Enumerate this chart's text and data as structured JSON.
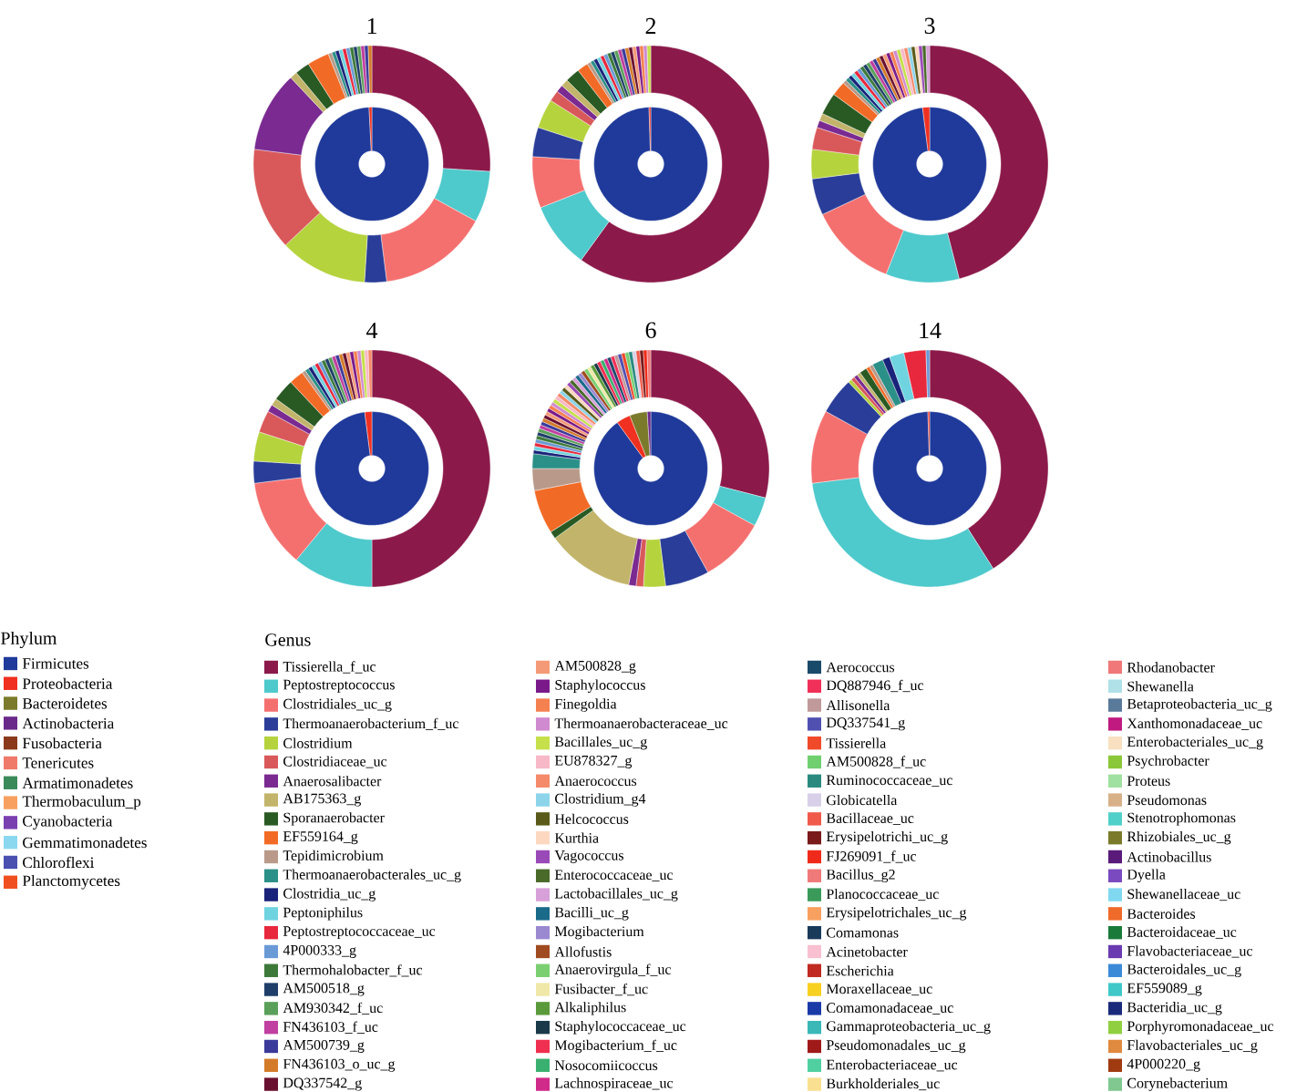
{
  "chart_data": [
    {
      "type": "donut",
      "title": "1",
      "legend": "bottom",
      "legend_title": "Genus",
      "categories": [
        "Tissierella_f_uc",
        "Peptostreptococcus",
        "Clostridiales_uc_g",
        "Thermoanaerobacterium_f_uc",
        "Clostridium",
        "Clostridiaceae_uc",
        "Anaerosalibacter",
        "AB175363_g",
        "Sporanaerobacter",
        "EF559164_g",
        "Tepidimicrobium",
        "Thermoanaerobacterales_uc_g",
        "Clostridia_uc_g",
        "Peptoniphilus",
        "Peptostreptococcaceae_uc",
        "4P000333_g",
        "Thermohalobacter_f_uc",
        "AM500518_g",
        "AM930342_f_uc",
        "FN436103_f_uc",
        "AM500739_g",
        "FN436103_o_uc_g",
        "DQ337542_g",
        "AM500828_g",
        "Staphylococcus",
        "Finegoldia",
        "Thermoanaerobacteraceae_uc",
        "Bacillales_uc_g",
        "EU878327_g",
        "Anaerococcus",
        "Clostridium_g4",
        "Helcococcus",
        "Kurthia",
        "Vagococcus",
        "Enterococcaceae_uc",
        "Lactobacillales_uc_g",
        "Bacilli_uc_g",
        "Mogibacterium",
        "Allofustis",
        "Anaerovirgula_f_uc",
        "Fusibacter_f_uc",
        "Alkaliphilus",
        "Staphylococcaceae_uc",
        "Mogibacterium_f_uc",
        "Nosocomiicoccus",
        "Lachnospiraceae_uc",
        "Aerococcus",
        "DQ887946_f_uc",
        "Allisonella",
        "DQ337541_g",
        "Tissierella",
        "AM500828_f_uc",
        "Ruminococcaceae_uc",
        "Globicatella",
        "Bacillaceae_uc",
        "Erysipelotrichi_uc_g",
        "FJ269091_f_uc",
        "Bacillus_g2",
        "Planococcaceae_uc",
        "Erysipelotrichales_uc_g",
        "Comamonas",
        "Acinetobacter",
        "Escherichia",
        "Moraxellaceae_uc",
        "Comamonadaceae_uc",
        "Gammaproteobacteria_uc_g",
        "Pseudomonadales_uc_g",
        "Enterobacteriaceae_uc",
        "Burkholderiales_uc",
        "Rhodanobacter",
        "Shewanella",
        "Betaproteobacteria_uc_g",
        "Xanthomonadaceae_uc",
        "Enterobacteriales_uc_g",
        "Psychrobacter",
        "Proteus",
        "Pseudomonas",
        "Stenotrophomonas",
        "Rhizobiales_uc_g",
        "Actinobacillus",
        "Dyella",
        "Shewanellaceae_uc",
        "Bacteroides",
        "Bacteroidaceae_uc",
        "Flavobacteriaceae_uc",
        "Bacteroidales_uc_g",
        "EF559089_g",
        "Bacteridia_uc_g",
        "Porphyromonadaceae_uc",
        "Flavobacteriales_uc_g",
        "4P000220_g",
        "Corynebacterium"
      ],
      "colors": [
        "#8b1a4a",
        "#4ec9cc",
        "#f4706f",
        "#2a3d98",
        "#b5d33d",
        "#d9595a",
        "#7a2a91",
        "#c2b46a",
        "#2a5a23",
        "#f26b26",
        "#b99a8a",
        "#2a9088",
        "#1a237a",
        "#6fd4e0",
        "#e8283c",
        "#6a9ad6",
        "#3d7a3a",
        "#1f3f6a",
        "#5aa05a",
        "#c03fa0",
        "#3a3a9a",
        "#d47b2a",
        "#6a1030",
        "#f59a76",
        "#7a1a8a",
        "#f58050",
        "#d08ad0",
        "#c5e04a",
        "#f7b8c8",
        "#f48a6a",
        "#8cd4ea",
        "#5a5a1a",
        "#fcd8c0",
        "#9a4ab8",
        "#4a6a2a",
        "#d8a0d8",
        "#1a6a8a",
        "#9a88d0",
        "#a04a20",
        "#7ad070",
        "#f0e8a8",
        "#5a9a3a",
        "#1a3a4a",
        "#f03050",
        "#3ab070",
        "#d02a8a",
        "#1a4a6a",
        "#f03058",
        "#c09a9a",
        "#5050b0",
        "#f04a2a",
        "#70d070",
        "#2a8a80",
        "#d8d0e8",
        "#f05a4a",
        "#7a1a1a",
        "#f02a1a",
        "#f07a7a",
        "#3a9a5a",
        "#f8a060",
        "#1a3a5a",
        "#f8c0d0",
        "#c02a20",
        "#f8d020",
        "#1a3aa8",
        "#3ab8b8",
        "#a01a1a",
        "#50d0a0",
        "#f8e090",
        "#f07878",
        "#b0e0e8",
        "#5a7a9a",
        "#c01a80",
        "#f8e0c0",
        "#8ac83a",
        "#a0e0a0",
        "#d8b088",
        "#50d0c8",
        "#7a7a2a",
        "#5a1a7a",
        "#7a4ac0",
        "#80d8f0",
        "#f06a2a",
        "#1a7a3a",
        "#6a3ab0",
        "#3a8ad8",
        "#40c8c8",
        "#1a2a7a",
        "#90d040",
        "#e08a40",
        "#a03a10",
        "#80c890"
      ],
      "values": [
        26,
        7,
        15,
        3,
        12,
        14,
        11,
        1,
        2,
        3,
        0.5,
        0.5,
        0.5,
        0.5,
        0.5,
        0.5,
        0.5,
        0.5,
        0.5,
        0.5,
        0.5,
        0.5,
        0,
        0,
        0,
        0,
        0,
        0,
        0,
        0,
        0,
        0,
        0,
        0,
        0,
        0,
        0,
        0,
        0,
        0,
        0,
        0,
        0,
        0,
        0,
        0,
        0,
        0,
        0,
        0,
        0,
        0,
        0,
        0,
        0,
        0,
        0,
        0,
        0,
        0,
        0,
        0,
        0,
        0,
        0,
        0,
        0,
        0,
        0,
        0,
        0,
        0,
        0,
        0,
        0,
        0,
        0,
        0,
        0,
        0,
        0,
        0,
        0,
        0,
        0,
        0,
        0,
        0,
        0,
        0,
        0,
        0
      ]
    },
    {
      "type": "donut",
      "legend": "bottom",
      "legend_title": "Phylum",
      "categories": [
        "Firmicutes",
        "Proteobacteria",
        "Bacteroidetes",
        "Actinobacteria",
        "Fusobacteria",
        "Tenericutes",
        "Armatimonadetes",
        "Thermobaculum_p",
        "Cyanobacteria",
        "Gemmatimonadetes",
        "Chloroflexi",
        "Planctomycetes"
      ],
      "colors": [
        "#1f3a9a",
        "#f03020",
        "#7a7a2a",
        "#6a2a8a",
        "#8a3a1a",
        "#f07a6a",
        "#3a8a5a",
        "#f8a060",
        "#7a40b0",
        "#8ad8f0",
        "#4a50b0",
        "#f05020"
      ],
      "values": [
        99.2,
        0.8,
        0,
        0,
        0,
        0,
        0,
        0,
        0,
        0,
        0,
        0
      ]
    },
    {
      "type": "donut",
      "title": "2",
      "colors": [
        "#8b1a4a",
        "#4ec9cc",
        "#f4706f",
        "#2a3d98",
        "#b5d33d",
        "#d9595a",
        "#7a2a91",
        "#c2b46a",
        "#2a5a23",
        "#f26b26",
        "#b99a8a",
        "#2a9088",
        "#1a237a",
        "#6fd4e0",
        "#e8283c",
        "#6a9ad6",
        "#3d7a3a",
        "#1f3f6a",
        "#5aa05a",
        "#c03fa0",
        "#3a3a9a",
        "#d47b2a",
        "#6a1030",
        "#f59a76",
        "#7a1a8a",
        "#f58050",
        "#d08ad0",
        "#c5e04a",
        "#f7b8c8",
        "#f48a6a",
        "#8cd4ea",
        "#5a5a1a",
        "#fcd8c0",
        "#9a4ab8",
        "#4a6a2a",
        "#d8a0d8",
        "#1a6a8a",
        "#9a88d0",
        "#a04a20",
        "#7ad070",
        "#f0e8a8",
        "#5a9a3a",
        "#1a3a4a",
        "#f03050",
        "#3ab070",
        "#d02a8a",
        "#1a4a6a",
        "#f03058",
        "#c09a9a",
        "#5050b0",
        "#f04a2a",
        "#70d070",
        "#2a8a80",
        "#d8d0e8",
        "#f05a4a",
        "#7a1a1a",
        "#f02a1a",
        "#f07a7a",
        "#3a9a5a",
        "#f8a060",
        "#1a3a5a",
        "#f8c0d0",
        "#c02a20",
        "#f8d020",
        "#1a3aa8",
        "#3ab8b8",
        "#a01a1a",
        "#50d0a0",
        "#f8e090",
        "#f07878",
        "#b0e0e8",
        "#5a7a9a",
        "#c01a80",
        "#f8e0c0",
        "#8ac83a",
        "#a0e0a0",
        "#d8b088",
        "#50d0c8",
        "#7a7a2a",
        "#5a1a7a",
        "#7a4ac0",
        "#80d8f0",
        "#f06a2a",
        "#1a7a3a",
        "#6a3ab0",
        "#3a8ad8",
        "#40c8c8",
        "#1a2a7a",
        "#90d040",
        "#e08a40",
        "#a03a10",
        "#80c890"
      ],
      "values": [
        60,
        9,
        7,
        4,
        4,
        1.5,
        1,
        1,
        2,
        1.5,
        0.5,
        0.5,
        0.5,
        0.5,
        0.5,
        0.5,
        0.5,
        0.5,
        0.5,
        0.5,
        0.5,
        0.5,
        0.5,
        0.5,
        0.5,
        0.5,
        0.5,
        0.5,
        0,
        0,
        0,
        0,
        0,
        0,
        0,
        0,
        0,
        0,
        0,
        0,
        0,
        0,
        0,
        0,
        0,
        0,
        0,
        0,
        0,
        0,
        0,
        0,
        0,
        0,
        0,
        0,
        0,
        0,
        0,
        0,
        0,
        0,
        0,
        0,
        0,
        0,
        0,
        0,
        0,
        0,
        0,
        0,
        0,
        0,
        0,
        0,
        0,
        0,
        0,
        0,
        0,
        0,
        0,
        0,
        0,
        0,
        0,
        0,
        0,
        0,
        0,
        0
      ]
    },
    {
      "type": "donut",
      "colors": [
        "#1f3a9a",
        "#f03020",
        "#7a7a2a",
        "#6a2a8a",
        "#8a3a1a",
        "#f07a6a",
        "#3a8a5a",
        "#f8a060",
        "#7a40b0",
        "#8ad8f0",
        "#4a50b0",
        "#f05020"
      ],
      "values": [
        99.5,
        0.5,
        0,
        0,
        0,
        0,
        0,
        0,
        0,
        0,
        0,
        0
      ]
    },
    {
      "type": "donut",
      "title": "3",
      "colors": [
        "#8b1a4a",
        "#4ec9cc",
        "#f4706f",
        "#2a3d98",
        "#b5d33d",
        "#d9595a",
        "#7a2a91",
        "#c2b46a",
        "#2a5a23",
        "#f26b26",
        "#b99a8a",
        "#2a9088",
        "#1a237a",
        "#6fd4e0",
        "#e8283c",
        "#6a9ad6",
        "#3d7a3a",
        "#1f3f6a",
        "#5aa05a",
        "#c03fa0",
        "#3a3a9a",
        "#d47b2a",
        "#6a1030",
        "#f59a76",
        "#7a1a8a",
        "#f58050",
        "#d08ad0",
        "#c5e04a",
        "#f7b8c8",
        "#f48a6a",
        "#8cd4ea",
        "#5a5a1a",
        "#fcd8c0",
        "#9a4ab8",
        "#4a6a2a",
        "#d8a0d8",
        "#1a6a8a",
        "#9a88d0",
        "#a04a20",
        "#7ad070",
        "#f0e8a8",
        "#5a9a3a",
        "#1a3a4a",
        "#f03050",
        "#3ab070",
        "#d02a8a",
        "#1a4a6a",
        "#f03058",
        "#c09a9a",
        "#5050b0",
        "#f04a2a",
        "#70d070",
        "#2a8a80",
        "#d8d0e8",
        "#f05a4a",
        "#7a1a1a",
        "#f02a1a",
        "#f07a7a",
        "#3a9a5a",
        "#f8a060",
        "#1a3a5a",
        "#f8c0d0",
        "#c02a20",
        "#f8d020",
        "#1a3aa8",
        "#3ab8b8",
        "#a01a1a",
        "#50d0a0",
        "#f8e090",
        "#f07878",
        "#b0e0e8",
        "#5a7a9a",
        "#c01a80",
        "#f8e0c0",
        "#8ac83a",
        "#a0e0a0",
        "#d8b088",
        "#50d0c8",
        "#7a7a2a",
        "#5a1a7a",
        "#7a4ac0",
        "#80d8f0",
        "#f06a2a",
        "#1a7a3a",
        "#6a3ab0",
        "#3a8ad8",
        "#40c8c8",
        "#1a2a7a",
        "#90d040",
        "#e08a40",
        "#a03a10",
        "#80c890"
      ],
      "values": [
        46,
        10,
        12,
        5,
        4,
        3,
        1,
        1,
        3,
        2,
        0.5,
        0.5,
        0.5,
        0.5,
        0.5,
        0.5,
        0.5,
        0.5,
        0.5,
        0.5,
        0.5,
        0.5,
        0.5,
        0.5,
        0.5,
        0.5,
        0.5,
        0.5,
        0.5,
        0.5,
        0.5,
        0.5,
        0.5,
        0.5,
        0.5,
        0.5,
        0,
        0,
        0,
        0,
        0,
        0,
        0,
        0,
        0,
        0,
        0,
        0,
        0,
        0,
        0,
        0,
        0,
        0,
        0,
        0,
        0,
        0,
        0,
        0,
        0,
        0,
        0,
        0,
        0,
        0,
        0,
        0,
        0,
        0,
        0,
        0,
        0,
        0,
        0,
        0,
        0,
        0,
        0,
        0,
        0,
        0,
        0,
        0,
        0,
        0,
        0,
        0,
        0,
        0,
        0,
        0
      ]
    },
    {
      "type": "donut",
      "colors": [
        "#1f3a9a",
        "#f03020",
        "#7a7a2a",
        "#6a2a8a",
        "#8a3a1a",
        "#f07a6a",
        "#3a8a5a",
        "#f8a060",
        "#7a40b0",
        "#8ad8f0",
        "#4a50b0",
        "#f05020"
      ],
      "values": [
        98,
        2,
        0,
        0,
        0,
        0,
        0,
        0,
        0,
        0,
        0,
        0
      ]
    },
    {
      "type": "donut",
      "title": "4",
      "colors": [
        "#8b1a4a",
        "#4ec9cc",
        "#f4706f",
        "#2a3d98",
        "#b5d33d",
        "#d9595a",
        "#7a2a91",
        "#c2b46a",
        "#2a5a23",
        "#f26b26",
        "#b99a8a",
        "#2a9088",
        "#1a237a",
        "#6fd4e0",
        "#e8283c",
        "#6a9ad6",
        "#3d7a3a",
        "#1f3f6a",
        "#5aa05a",
        "#c03fa0",
        "#3a3a9a",
        "#d47b2a",
        "#6a1030",
        "#f59a76",
        "#7a1a8a",
        "#f58050",
        "#d08ad0",
        "#c5e04a",
        "#f7b8c8",
        "#f48a6a",
        "#8cd4ea",
        "#5a5a1a",
        "#fcd8c0",
        "#9a4ab8",
        "#4a6a2a",
        "#d8a0d8",
        "#1a6a8a",
        "#9a88d0",
        "#a04a20",
        "#7ad070",
        "#f0e8a8",
        "#5a9a3a",
        "#1a3a4a",
        "#f03050",
        "#3ab070",
        "#d02a8a",
        "#1a4a6a",
        "#f03058",
        "#c09a9a",
        "#5050b0",
        "#f04a2a",
        "#70d070",
        "#2a8a80",
        "#d8d0e8",
        "#f05a4a",
        "#7a1a1a",
        "#f02a1a",
        "#f07a7a",
        "#3a9a5a",
        "#f8a060",
        "#1a3a5a",
        "#f8c0d0",
        "#c02a20",
        "#f8d020",
        "#1a3aa8",
        "#3ab8b8",
        "#a01a1a",
        "#50d0a0",
        "#f8e090",
        "#f07878",
        "#b0e0e8",
        "#5a7a9a",
        "#c01a80",
        "#f8e0c0",
        "#8ac83a",
        "#a0e0a0",
        "#d8b088",
        "#50d0c8",
        "#7a7a2a",
        "#5a1a7a",
        "#7a4ac0",
        "#80d8f0",
        "#f06a2a",
        "#1a7a3a",
        "#6a3ab0",
        "#3a8ad8",
        "#40c8c8",
        "#1a2a7a",
        "#90d040",
        "#e08a40",
        "#a03a10",
        "#80c890"
      ],
      "values": [
        50,
        11,
        12,
        3,
        4,
        3,
        1,
        1,
        3,
        2,
        0.5,
        0.5,
        0.5,
        0.5,
        0.5,
        0.5,
        0.5,
        0.5,
        0.5,
        0.5,
        0.5,
        0.5,
        0.5,
        0.5,
        0.5,
        0.5,
        0.5,
        0.5,
        0.5,
        0.5,
        0,
        0,
        0,
        0,
        0,
        0,
        0,
        0,
        0,
        0,
        0,
        0,
        0,
        0,
        0,
        0,
        0,
        0,
        0,
        0,
        0,
        0,
        0,
        0,
        0,
        0,
        0,
        0,
        0,
        0,
        0,
        0,
        0,
        0,
        0,
        0,
        0,
        0,
        0,
        0,
        0,
        0,
        0,
        0,
        0,
        0,
        0,
        0,
        0,
        0,
        0,
        0,
        0,
        0,
        0,
        0,
        0,
        0,
        0,
        0,
        0,
        0
      ]
    },
    {
      "type": "donut",
      "colors": [
        "#1f3a9a",
        "#f03020",
        "#7a7a2a",
        "#6a2a8a",
        "#8a3a1a",
        "#f07a6a",
        "#3a8a5a",
        "#f8a060",
        "#7a40b0",
        "#8ad8f0",
        "#4a50b0",
        "#f05020"
      ],
      "values": [
        98,
        2,
        0,
        0,
        0,
        0,
        0,
        0,
        0,
        0,
        0,
        0
      ]
    },
    {
      "type": "donut",
      "title": "6",
      "colors": [
        "#8b1a4a",
        "#4ec9cc",
        "#f4706f",
        "#2a3d98",
        "#b5d33d",
        "#d9595a",
        "#7a2a91",
        "#c2b46a",
        "#2a5a23",
        "#f26b26",
        "#b99a8a",
        "#2a9088",
        "#1a237a",
        "#6fd4e0",
        "#e8283c",
        "#6a9ad6",
        "#3d7a3a",
        "#1f3f6a",
        "#5aa05a",
        "#c03fa0",
        "#3a3a9a",
        "#d47b2a",
        "#6a1030",
        "#f59a76",
        "#7a1a8a",
        "#f58050",
        "#d08ad0",
        "#c5e04a",
        "#f7b8c8",
        "#f48a6a",
        "#8cd4ea",
        "#5a5a1a",
        "#fcd8c0",
        "#9a4ab8",
        "#4a6a2a",
        "#d8a0d8",
        "#1a6a8a",
        "#9a88d0",
        "#a04a20",
        "#7ad070",
        "#f0e8a8",
        "#5a9a3a",
        "#1a3a4a",
        "#f03050",
        "#3ab070",
        "#d02a8a",
        "#1a4a6a",
        "#f03058",
        "#c09a9a",
        "#5050b0",
        "#f04a2a",
        "#70d070",
        "#2a8a80",
        "#d8d0e8",
        "#f05a4a",
        "#7a1a1a",
        "#f02a1a",
        "#f07a7a",
        "#3a9a5a",
        "#f8a060",
        "#1a3a5a",
        "#f8c0d0",
        "#c02a20",
        "#f8d020",
        "#1a3aa8",
        "#3ab8b8",
        "#a01a1a",
        "#50d0a0",
        "#f8e090",
        "#f07878",
        "#b0e0e8",
        "#5a7a9a",
        "#c01a80",
        "#f8e0c0",
        "#8ac83a",
        "#a0e0a0",
        "#d8b088",
        "#50d0c8",
        "#7a7a2a",
        "#5a1a7a",
        "#7a4ac0",
        "#80d8f0",
        "#f06a2a",
        "#1a7a3a",
        "#6a3ab0",
        "#3a8ad8",
        "#40c8c8",
        "#1a2a7a",
        "#90d040",
        "#e08a40",
        "#a03a10",
        "#80c890"
      ],
      "values": [
        29,
        4,
        9,
        6,
        3,
        1,
        1,
        12,
        1,
        6,
        3,
        2,
        0.5,
        0.5,
        0.5,
        0.5,
        0.5,
        0.5,
        0.5,
        0.5,
        0.5,
        0.5,
        0.5,
        0.5,
        0.5,
        0.5,
        0.5,
        0.5,
        0.5,
        0.5,
        0.5,
        0.5,
        0.5,
        0.5,
        0.5,
        0.5,
        0.5,
        0.5,
        0.5,
        0.5,
        0.5,
        0.5,
        0.5,
        0.5,
        0.5,
        0.5,
        0.5,
        0.5,
        0.5,
        0.5,
        0.5,
        0.5,
        0.5,
        0.5,
        0.5,
        0.5,
        0.5,
        0.5,
        0,
        0,
        0,
        0,
        0,
        0,
        0,
        0,
        0,
        0,
        0,
        0,
        0,
        0,
        0,
        0,
        0,
        0,
        0,
        0,
        0,
        0,
        0,
        0,
        0,
        0,
        0,
        0,
        0,
        0,
        0,
        0,
        0,
        0
      ]
    },
    {
      "type": "donut",
      "colors": [
        "#1f3a9a",
        "#f03020",
        "#7a7a2a",
        "#6a2a8a",
        "#8a3a1a",
        "#f07a6a",
        "#3a8a5a",
        "#f8a060",
        "#7a40b0",
        "#8ad8f0",
        "#4a50b0",
        "#f05020"
      ],
      "values": [
        90,
        4,
        5,
        1,
        0,
        0,
        0,
        0,
        0,
        0,
        0,
        0
      ]
    },
    {
      "type": "donut",
      "title": "14",
      "colors": [
        "#8b1a4a",
        "#4ec9cc",
        "#f4706f",
        "#2a3d98",
        "#b5d33d",
        "#d9595a",
        "#7a2a91",
        "#c2b46a",
        "#2a5a23",
        "#f26b26",
        "#b99a8a",
        "#2a9088",
        "#1a237a",
        "#6fd4e0",
        "#e8283c",
        "#6a9ad6",
        "#3d7a3a",
        "#1f3f6a",
        "#5aa05a",
        "#c03fa0",
        "#3a3a9a",
        "#d47b2a",
        "#6a1030",
        "#f59a76",
        "#7a1a8a",
        "#f58050",
        "#d08ad0",
        "#c5e04a",
        "#f7b8c8",
        "#f48a6a",
        "#8cd4ea",
        "#5a5a1a",
        "#fcd8c0",
        "#9a4ab8",
        "#4a6a2a",
        "#d8a0d8",
        "#1a6a8a",
        "#9a88d0",
        "#a04a20",
        "#7ad070",
        "#f0e8a8",
        "#5a9a3a",
        "#1a3a4a",
        "#f03050",
        "#3ab070",
        "#d02a8a",
        "#1a4a6a",
        "#f03058",
        "#c09a9a",
        "#5050b0",
        "#f04a2a",
        "#70d070",
        "#2a8a80",
        "#d8d0e8",
        "#f05a4a",
        "#7a1a1a",
        "#f02a1a",
        "#f07a7a",
        "#3a9a5a",
        "#f8a060",
        "#1a3a5a",
        "#f8c0d0",
        "#c02a20",
        "#f8d020",
        "#1a3aa8",
        "#3ab8b8",
        "#a01a1a",
        "#50d0a0",
        "#f8e090",
        "#f07878",
        "#b0e0e8",
        "#5a7a9a",
        "#c01a80",
        "#f8e0c0",
        "#8ac83a",
        "#a0e0a0",
        "#d8b088",
        "#50d0c8",
        "#7a7a2a",
        "#5a1a7a",
        "#7a4ac0",
        "#80d8f0",
        "#f06a2a",
        "#1a7a3a",
        "#6a3ab0",
        "#3a8ad8",
        "#40c8c8",
        "#1a2a7a",
        "#90d040",
        "#e08a40",
        "#a03a10",
        "#80c890"
      ],
      "values": [
        41,
        32,
        10,
        5,
        0.5,
        0.5,
        0.5,
        0.5,
        1,
        0.5,
        0.5,
        1.5,
        1,
        2,
        3,
        0.5,
        0,
        0,
        0,
        0,
        0,
        0,
        0,
        0,
        0,
        0,
        0,
        0,
        0,
        0,
        0,
        0,
        0,
        0,
        0,
        0,
        0,
        0,
        0,
        0,
        0,
        0,
        0,
        0,
        0,
        0,
        0,
        0,
        0,
        0,
        0,
        0,
        0,
        0,
        0,
        0,
        0,
        0,
        0,
        0,
        0,
        0,
        0,
        0,
        0,
        0,
        0,
        0,
        0,
        0,
        0,
        0,
        0,
        0,
        0,
        0,
        0,
        0,
        0,
        0,
        0,
        0,
        0,
        0,
        0,
        0,
        0,
        0,
        0,
        0,
        0,
        0
      ]
    },
    {
      "type": "donut",
      "colors": [
        "#1f3a9a",
        "#f03020",
        "#7a7a2a",
        "#6a2a8a",
        "#8a3a1a",
        "#f07a6a",
        "#3a8a5a",
        "#f8a060",
        "#7a40b0",
        "#8ad8f0",
        "#4a50b0",
        "#f05020"
      ],
      "values": [
        99.5,
        0.5,
        0,
        0,
        0,
        0,
        0,
        0,
        0,
        0,
        0,
        0
      ]
    }
  ]
}
